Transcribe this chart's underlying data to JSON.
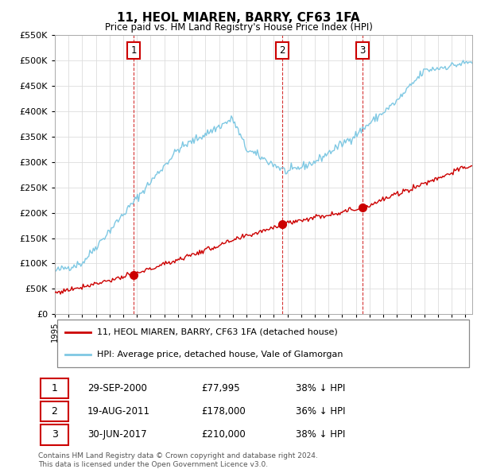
{
  "title": "11, HEOL MIAREN, BARRY, CF63 1FA",
  "subtitle": "Price paid vs. HM Land Registry's House Price Index (HPI)",
  "ylim": [
    0,
    550000
  ],
  "xlim_start": 1995.0,
  "xlim_end": 2025.5,
  "hpi_color": "#7ec8e3",
  "price_color": "#cc0000",
  "marker_color": "#cc0000",
  "legend_label_price": "11, HEOL MIAREN, BARRY, CF63 1FA (detached house)",
  "legend_label_hpi": "HPI: Average price, detached house, Vale of Glamorgan",
  "transactions": [
    {
      "label": "1",
      "date": 2000.75,
      "price": 77995
    },
    {
      "label": "2",
      "date": 2011.63,
      "price": 178000
    },
    {
      "label": "3",
      "date": 2017.5,
      "price": 210000
    }
  ],
  "transaction_table": [
    {
      "num": "1",
      "date": "29-SEP-2000",
      "price": "£77,995",
      "note": "38% ↓ HPI"
    },
    {
      "num": "2",
      "date": "19-AUG-2011",
      "price": "£178,000",
      "note": "36% ↓ HPI"
    },
    {
      "num": "3",
      "date": "30-JUN-2017",
      "price": "£210,000",
      "note": "38% ↓ HPI"
    }
  ],
  "footer": "Contains HM Land Registry data © Crown copyright and database right 2024.\nThis data is licensed under the Open Government Licence v3.0.",
  "background_color": "#ffffff",
  "plot_bg_color": "#ffffff",
  "grid_color": "#dddddd"
}
